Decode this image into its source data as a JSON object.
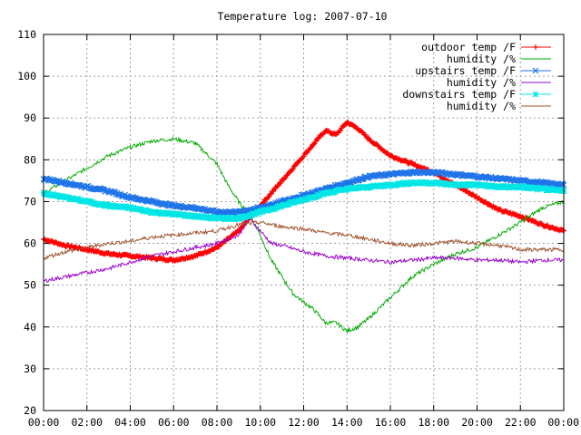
{
  "chart_data": {
    "type": "line",
    "title": "Temperature log: 2007-07-10",
    "xlabel": "",
    "ylabel": "",
    "xlim": [
      0,
      24
    ],
    "ylim": [
      20,
      110
    ],
    "grid": true,
    "legend_position": "top-right",
    "x_ticks": [
      "00:00",
      "02:00",
      "04:00",
      "06:00",
      "08:00",
      "10:00",
      "12:00",
      "14:00",
      "16:00",
      "18:00",
      "20:00",
      "22:00",
      "00:00"
    ],
    "y_ticks": [
      "20",
      "30",
      "40",
      "50",
      "60",
      "70",
      "80",
      "90",
      "100",
      "110"
    ],
    "series": [
      {
        "name": "outdoor temp /F",
        "color": "#ff0000",
        "marker": "plus",
        "x": [
          0,
          1,
          2,
          3,
          4,
          5,
          6,
          7,
          8,
          8.5,
          9,
          9.5,
          10,
          10.5,
          11,
          11.5,
          12,
          12.5,
          13,
          13.5,
          14,
          14.5,
          15,
          16,
          17,
          18,
          19,
          20,
          21,
          22,
          23,
          24
        ],
        "values": [
          61,
          59.5,
          58.5,
          57.5,
          57,
          56.5,
          56,
          57,
          59,
          61,
          63,
          66,
          69,
          72,
          75,
          78,
          81,
          84,
          87,
          86,
          89,
          87.5,
          85,
          81,
          79,
          77,
          74,
          71,
          68,
          66.5,
          64.5,
          63
        ]
      },
      {
        "name": "humidity /%",
        "color": "#00aa00",
        "marker": "none",
        "x": [
          0,
          1,
          2,
          3,
          4,
          5,
          6,
          7,
          8,
          8.5,
          9,
          9.5,
          10,
          10.5,
          11,
          11.5,
          12,
          12.5,
          13,
          13.5,
          14,
          14.5,
          15,
          16,
          17,
          18,
          19,
          20,
          21,
          22,
          23,
          24
        ],
        "values": [
          72,
          75,
          78,
          81,
          83,
          84.5,
          85,
          84,
          79,
          74,
          70,
          67,
          62,
          56,
          52,
          48,
          46,
          44,
          41,
          41,
          39,
          40,
          42,
          47,
          52,
          55,
          57.5,
          59,
          62,
          65,
          68.5,
          70
        ]
      },
      {
        "name": "upstairs temp /F",
        "color": "#1e74e8",
        "marker": "cross",
        "x": [
          0,
          1,
          2,
          3,
          4,
          5,
          6,
          7,
          8,
          9,
          10,
          11,
          12,
          13,
          14,
          15,
          16,
          17,
          18,
          19,
          20,
          21,
          22,
          23,
          24
        ],
        "values": [
          75.5,
          74.5,
          73.5,
          72.5,
          71,
          70,
          69,
          68.5,
          67.5,
          67.5,
          68.5,
          70,
          71.5,
          73,
          74.5,
          76,
          76.5,
          77,
          77,
          76.5,
          76,
          75.5,
          75,
          74.5,
          74
        ]
      },
      {
        "name": "humidity /%",
        "color": "#9900cc",
        "marker": "none",
        "x": [
          0,
          1,
          2,
          3,
          4,
          5,
          6,
          7,
          8,
          9,
          9.5,
          10,
          10.5,
          11,
          12,
          13,
          14,
          15,
          16,
          17,
          18,
          19,
          20,
          21,
          22,
          23,
          24
        ],
        "values": [
          51,
          52,
          53,
          54,
          55.5,
          57,
          58,
          59,
          60,
          62,
          66,
          63,
          60,
          59.5,
          58,
          57,
          56.5,
          56,
          55.5,
          56,
          56.5,
          56.5,
          56,
          56,
          55.5,
          56,
          56
        ]
      },
      {
        "name": "downstairs temp /F",
        "color": "#00e5e5",
        "marker": "star",
        "x": [
          0,
          1,
          2,
          3,
          4,
          5,
          6,
          7,
          8,
          9,
          10,
          11,
          12,
          13,
          14,
          15,
          16,
          17,
          18,
          19,
          20,
          21,
          22,
          23,
          24
        ],
        "values": [
          72,
          71,
          70,
          69,
          68.5,
          67.5,
          67,
          66.5,
          66,
          66,
          67.5,
          69,
          70.5,
          72,
          73,
          73.5,
          74,
          74.5,
          74.5,
          74,
          74,
          73.5,
          73.5,
          73,
          72.5
        ]
      },
      {
        "name": "humidity /%",
        "color": "#a0522d",
        "marker": "none",
        "x": [
          0,
          1,
          2,
          3,
          4,
          5,
          6,
          7,
          8,
          9,
          10,
          11,
          12,
          13,
          14,
          15,
          16,
          17,
          18,
          19,
          20,
          21,
          22,
          23,
          24
        ],
        "values": [
          56.5,
          58,
          59,
          60,
          60.5,
          61.5,
          62,
          62.5,
          63,
          64.5,
          65,
          64,
          63.5,
          62.5,
          62,
          61,
          60,
          59.5,
          60,
          60.5,
          60,
          59.5,
          58.5,
          58.5,
          58.5
        ]
      }
    ]
  }
}
